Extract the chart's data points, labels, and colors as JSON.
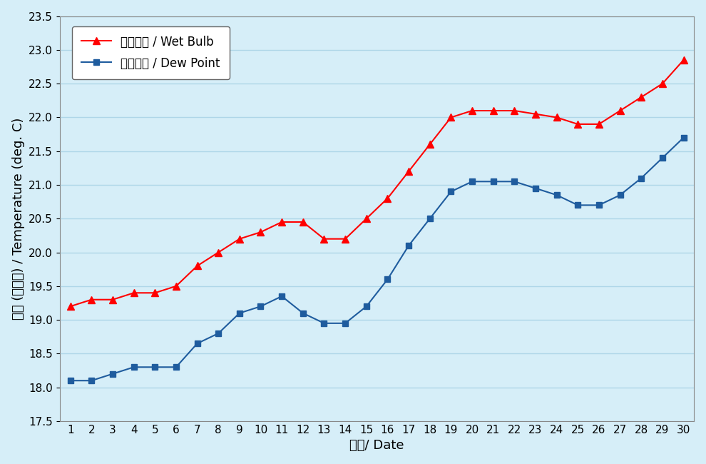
{
  "days": [
    1,
    2,
    3,
    4,
    5,
    6,
    7,
    8,
    9,
    10,
    11,
    12,
    13,
    14,
    15,
    16,
    17,
    18,
    19,
    20,
    21,
    22,
    23,
    24,
    25,
    26,
    27,
    28,
    29,
    30
  ],
  "wet_bulb": [
    19.2,
    19.3,
    19.3,
    19.4,
    19.4,
    19.5,
    19.8,
    20.0,
    20.2,
    20.3,
    20.45,
    20.45,
    20.2,
    20.2,
    20.5,
    20.8,
    21.2,
    21.6,
    22.0,
    22.1,
    22.1,
    22.1,
    22.05,
    22.0,
    21.9,
    21.9,
    22.1,
    22.3,
    22.5,
    22.85
  ],
  "dew_point": [
    18.1,
    18.1,
    18.2,
    18.3,
    18.3,
    18.3,
    18.65,
    18.8,
    19.1,
    19.2,
    19.35,
    19.1,
    18.95,
    18.95,
    19.2,
    19.6,
    20.1,
    20.5,
    20.9,
    21.05,
    21.05,
    21.05,
    20.95,
    20.85,
    20.7,
    20.7,
    20.85,
    21.1,
    21.4,
    21.7
  ],
  "wet_bulb_color": "#FF0000",
  "dew_point_color": "#1F5C9E",
  "plot_bg_color": "#D6EEF8",
  "outer_bg_color": "#D6EEF8",
  "xlabel": "日期/ Date",
  "ylabel": "溫度 (攝氏度) / Temperature (deg. C)",
  "ylim": [
    17.5,
    23.5
  ],
  "yticks": [
    17.5,
    18.0,
    18.5,
    19.0,
    19.5,
    20.0,
    20.5,
    21.0,
    21.5,
    22.0,
    22.5,
    23.0,
    23.5
  ],
  "xlim": [
    0.5,
    30.5
  ],
  "legend_wet_bulb": "濕球溫度 / Wet Bulb",
  "legend_dew_point": "露點溫度 / Dew Point",
  "axis_label_fontsize": 13,
  "tick_fontsize": 11,
  "legend_fontsize": 12,
  "grid_color": "#AED6E8",
  "spine_color": "#888888"
}
